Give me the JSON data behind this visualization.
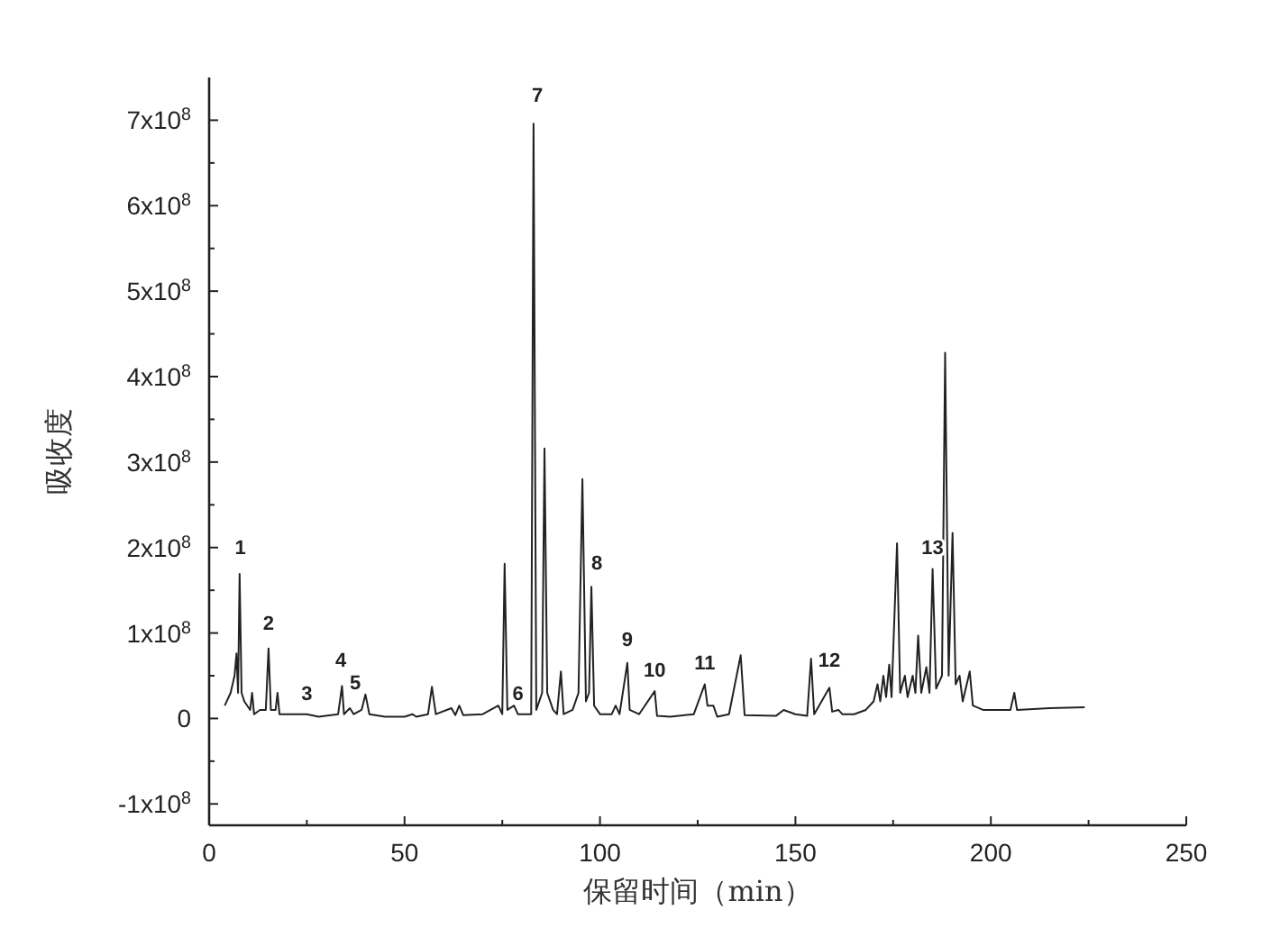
{
  "chart_data": {
    "type": "line",
    "xlabel": "保留时间（min）",
    "ylabel": "吸收度",
    "xlim": [
      0,
      250
    ],
    "ylim": [
      -125000000.0,
      750000000.0
    ],
    "xticks": [
      0,
      {
        "value": 25,
        "label": null
      },
      50,
      {
        "value": 75,
        "label": null
      },
      100,
      {
        "value": 125,
        "label": null
      },
      150,
      {
        "value": 175,
        "label": null
      },
      200,
      {
        "value": 225,
        "label": null
      },
      250
    ],
    "yticks": [
      {
        "value": -100000000.0,
        "label": "-1x10$^{8}$"
      },
      {
        "value": -50000000.0,
        "label": null
      },
      {
        "value": 0,
        "label": "0"
      },
      {
        "value": 50000000.0,
        "label": null
      },
      {
        "value": 100000000.0,
        "label": "1x10$^{8}$"
      },
      {
        "value": 150000000.0,
        "label": null
      },
      {
        "value": 200000000.0,
        "label": "2x10$^{8}$"
      },
      {
        "value": 250000000.0,
        "label": null
      },
      {
        "value": 300000000.0,
        "label": "3x10$^{8}$"
      },
      {
        "value": 350000000.0,
        "label": null
      },
      {
        "value": 400000000.0,
        "label": "4x10$^{8}$"
      },
      {
        "value": 450000000.0,
        "label": null
      },
      {
        "value": 500000000.0,
        "label": "5x10$^{8}$"
      },
      {
        "value": 550000000.0,
        "label": null
      },
      {
        "value": 600000000.0,
        "label": "6x10$^{8}$"
      },
      {
        "value": 650000000.0,
        "label": null
      },
      {
        "value": 700000000.0,
        "label": "7x10$^{8}$"
      }
    ],
    "grid": false,
    "marker": "none",
    "line_style": "solid",
    "series": [
      {
        "color": "#222222",
        "x": [
          4,
          5.5,
          6.5,
          7,
          7.4,
          7.8,
          8.3,
          9,
          10.5,
          11,
          11.5,
          13,
          14.5,
          15.2,
          15.8,
          17,
          17.5,
          18,
          20,
          25,
          28,
          33,
          34,
          34.5,
          36,
          37,
          39,
          40,
          41,
          45,
          50,
          52,
          53,
          56,
          57,
          58,
          62,
          63,
          64,
          65,
          70,
          74,
          75,
          75.6,
          76.3,
          78,
          79,
          81,
          82.4,
          83,
          83.7,
          85.2,
          85.8,
          86.5,
          88,
          89,
          90,
          90.7,
          93,
          94.5,
          95.5,
          96.4,
          97.2,
          97.8,
          98.5,
          100,
          103,
          104,
          105,
          107,
          107.6,
          110,
          114,
          114.6,
          118,
          124,
          126.8,
          127.5,
          129,
          130,
          133,
          136,
          137,
          145,
          147,
          150,
          153,
          154,
          154.8,
          158.7,
          159.4,
          161,
          162,
          165,
          168,
          170,
          171,
          171.7,
          172.5,
          173.2,
          174,
          174.6,
          176,
          176.8,
          178,
          178.7,
          180,
          180.7,
          181.4,
          182.2,
          183.5,
          184.3,
          185.1,
          186,
          187.5,
          188.3,
          189.2,
          190.2,
          191,
          192,
          192.8,
          194.6,
          195.4,
          198,
          205,
          206,
          206.7,
          215,
          224
        ],
        "values": [
          15000000.0,
          30000000.0,
          50000000.0,
          76000000.0,
          30000000.0,
          169000000.0,
          30000000.0,
          20000000.0,
          10000000.0,
          30000000.0,
          5000000.0,
          10000000.0,
          10000000.0,
          82000000.0,
          10000000.0,
          10000000.0,
          30000000.0,
          5000000.0,
          5000000.0,
          5000000.0,
          2000000.0,
          5000000.0,
          38000000.0,
          5000000.0,
          12000000.0,
          5000000.0,
          10000000.0,
          28000000.0,
          5000000.0,
          2000000.0,
          2000000.0,
          5000000.0,
          2000000.0,
          5000000.0,
          37000000.0,
          5000000.0,
          12000000.0,
          4000000.0,
          15000000.0,
          4000000.0,
          5000000.0,
          15000000.0,
          5000000.0,
          181000000.0,
          10000000.0,
          15000000.0,
          5000000.0,
          5000000.0,
          5000000.0,
          696000000.0,
          10000000.0,
          30000000.0,
          316000000.0,
          30000000.0,
          10000000.0,
          5000000.0,
          55000000.0,
          5000000.0,
          10000000.0,
          30000000.0,
          280000000.0,
          20000000.0,
          30000000.0,
          154000000.0,
          15000000.0,
          5000000.0,
          5000000.0,
          15000000.0,
          5000000.0,
          65000000.0,
          10000000.0,
          5000000.0,
          32000000.0,
          3000000.0,
          2000000.0,
          5000000.0,
          40000000.0,
          15000000.0,
          15000000.0,
          2000000.0,
          5000000.0,
          74000000.0,
          4000000.0,
          3000000.0,
          10000000.0,
          5000000.0,
          3000000.0,
          70000000.0,
          5000000.0,
          36000000.0,
          8000000.0,
          10000000.0,
          5000000.0,
          5000000.0,
          10000000.0,
          20000000.0,
          40000000.0,
          20000000.0,
          50000000.0,
          25000000.0,
          63000000.0,
          25000000.0,
          205000000.0,
          30000000.0,
          50000000.0,
          25000000.0,
          50000000.0,
          30000000.0,
          97000000.0,
          30000000.0,
          60000000.0,
          30000000.0,
          175000000.0,
          35000000.0,
          50000000.0,
          428000000.0,
          50000000.0,
          217000000.0,
          40000000.0,
          50000000.0,
          20000000.0,
          55000000.0,
          15000000.0,
          10000000.0,
          10000000.0,
          30000000.0,
          10000000.0,
          12000000.0,
          13000000.0
        ]
      }
    ],
    "annotations": [
      {
        "text": "1",
        "x": 8,
        "y": 175000000.0
      },
      {
        "text": "2",
        "x": 15.2,
        "y": 87000000.0
      },
      {
        "text": "3",
        "x": 25,
        "y": 5000000.0
      },
      {
        "text": "4",
        "x": 33.7,
        "y": 44000000.0
      },
      {
        "text": "5",
        "x": 37.4,
        "y": 17000000.0
      },
      {
        "text": "6",
        "x": 79,
        "y": 5000000.0
      },
      {
        "text": "7",
        "x": 84,
        "y": 705000000.0
      },
      {
        "text": "8",
        "x": 99.2,
        "y": 158000000.0
      },
      {
        "text": "9",
        "x": 107,
        "y": 68000000.0
      },
      {
        "text": "10",
        "x": 114,
        "y": 32000000.0
      },
      {
        "text": "11",
        "x": 126.8,
        "y": 40000000.0
      },
      {
        "text": "12",
        "x": 158.7,
        "y": 44000000.0
      },
      {
        "text": "13",
        "x": 185.1,
        "y": 175000000.0
      }
    ]
  }
}
